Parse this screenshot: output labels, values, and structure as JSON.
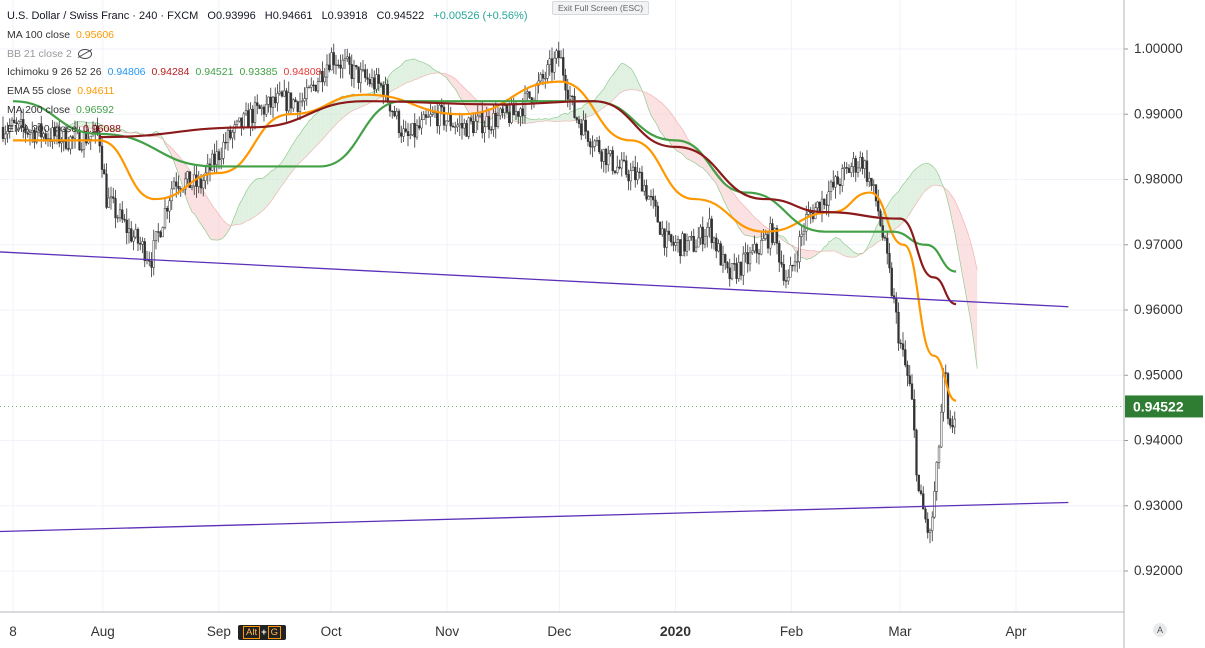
{
  "legend": {
    "main": {
      "title": "U.S. Dollar / Swiss Franc · 240 · FXCM",
      "open": "O0.93996",
      "high": "H0.94661",
      "low": "L0.93918",
      "close": "C0.94522",
      "change": "+0.00526 (+0.56%)"
    },
    "indicators": [
      {
        "label": "MA 100 close",
        "values": [
          "0.95606"
        ],
        "colors": [
          "#ff9800"
        ]
      },
      {
        "label": "BB 21 close 2",
        "values": [],
        "colors": [],
        "hidden": true
      },
      {
        "label": "Ichimoku 9 26 52 26",
        "values": [
          "0.94806",
          "0.94284",
          "0.94521",
          "0.93385",
          "0.94808"
        ],
        "colors": [
          "#2196f3",
          "#b71c1c",
          "#43a047",
          "#43a047",
          "#e53935"
        ]
      },
      {
        "label": "EMA 55 close",
        "values": [
          "0.94611"
        ],
        "colors": [
          "#ff9800"
        ]
      },
      {
        "label": "MA 200 close",
        "values": [
          "0.96592"
        ],
        "colors": [
          "#43a047"
        ]
      },
      {
        "label": "EMA 200 close",
        "values": [
          "0.96088"
        ],
        "colors": [
          "#8b0000"
        ]
      }
    ]
  },
  "ui": {
    "exit_fullscreen": "Exit Full Screen (ESC)",
    "alt_hint_pre": "Alt",
    "alt_hint_plus": "+",
    "alt_hint_key": "G",
    "auto_scale": "A"
  },
  "colors": {
    "up_candle": "#333333",
    "down_candle": "#333333",
    "ema55": "#ff9800",
    "ma200": "#43a047",
    "ema200": "#8b1a1a",
    "trendline": "#5c2fb8",
    "price_label_bg": "#2e7d32",
    "cloud_bull": "#c8e6c9",
    "cloud_bear": "#f8c8c8"
  },
  "chart_data": {
    "type": "candlestick",
    "title": "U.S. Dollar / Swiss Franc · 240 · FXCM",
    "x_axis": {
      "tick_labels": [
        "8",
        "Aug",
        "Sep",
        "Oct",
        "Nov",
        "Dec",
        "2020",
        "Feb",
        "Mar",
        "Apr"
      ],
      "range": [
        "2019-07",
        "2020-04"
      ]
    },
    "y_axis": {
      "range": [
        0.9165,
        1.0035
      ],
      "tick_labels": [
        "1.00000",
        "0.99000",
        "0.98000",
        "0.97000",
        "0.96000",
        "0.95000",
        "0.94000",
        "0.93000",
        "0.92000"
      ],
      "tick_values": [
        1.0,
        0.99,
        0.98,
        0.97,
        0.96,
        0.95,
        0.94,
        0.93,
        0.92
      ],
      "grid": true,
      "position": "right"
    },
    "last_price": {
      "value": 0.94522,
      "label": "0.94522"
    },
    "price_path": [
      [
        "2019-07-08",
        0.988
      ],
      [
        "2019-07-16",
        0.987
      ],
      [
        "2019-07-24",
        0.986
      ],
      [
        "2019-07-31",
        0.987
      ],
      [
        "2019-08-02",
        0.977
      ],
      [
        "2019-08-08",
        0.972
      ],
      [
        "2019-08-14",
        0.968
      ],
      [
        "2019-08-20",
        0.98
      ],
      [
        "2019-08-27",
        0.979
      ],
      [
        "2019-09-03",
        0.986
      ],
      [
        "2019-09-10",
        0.99
      ],
      [
        "2019-09-17",
        0.992
      ],
      [
        "2019-09-24",
        0.992
      ],
      [
        "2019-10-01",
        0.999
      ],
      [
        "2019-10-08",
        0.996
      ],
      [
        "2019-10-15",
        0.994
      ],
      [
        "2019-10-21",
        0.986
      ],
      [
        "2019-10-29",
        0.99
      ],
      [
        "2019-11-05",
        0.988
      ],
      [
        "2019-11-12",
        0.989
      ],
      [
        "2019-11-19",
        0.99
      ],
      [
        "2019-11-25",
        0.994
      ],
      [
        "2019-12-01",
        0.999
      ],
      [
        "2019-12-05",
        0.99
      ],
      [
        "2019-12-10",
        0.986
      ],
      [
        "2019-12-16",
        0.982
      ],
      [
        "2019-12-23",
        0.98
      ],
      [
        "2019-12-30",
        0.97
      ],
      [
        "2020-01-06",
        0.97
      ],
      [
        "2020-01-10",
        0.973
      ],
      [
        "2020-01-15",
        0.965
      ],
      [
        "2020-01-21",
        0.968
      ],
      [
        "2020-01-27",
        0.972
      ],
      [
        "2020-01-31",
        0.964
      ],
      [
        "2020-02-05",
        0.974
      ],
      [
        "2020-02-11",
        0.978
      ],
      [
        "2020-02-17",
        0.982
      ],
      [
        "2020-02-20",
        0.983
      ],
      [
        "2020-02-24",
        0.976
      ],
      [
        "2020-02-27",
        0.966
      ],
      [
        "2020-03-01",
        0.955
      ],
      [
        "2020-03-04",
        0.947
      ],
      [
        "2020-03-06",
        0.932
      ],
      [
        "2020-03-09",
        0.925
      ],
      [
        "2020-03-11",
        0.936
      ],
      [
        "2020-03-13",
        0.952
      ],
      [
        "2020-03-14",
        0.94
      ],
      [
        "2020-03-16",
        0.945
      ]
    ],
    "series": [
      {
        "name": "EMA 55 close",
        "color": "#ff9800",
        "points": [
          [
            "2019-07-08",
            0.986
          ],
          [
            "2019-07-31",
            0.986
          ],
          [
            "2019-08-15",
            0.977
          ],
          [
            "2019-09-01",
            0.981
          ],
          [
            "2019-09-20",
            0.99
          ],
          [
            "2019-10-10",
            0.993
          ],
          [
            "2019-11-05",
            0.99
          ],
          [
            "2019-12-01",
            0.995
          ],
          [
            "2019-12-20",
            0.986
          ],
          [
            "2020-01-06",
            0.977
          ],
          [
            "2020-01-25",
            0.972
          ],
          [
            "2020-02-12",
            0.975
          ],
          [
            "2020-02-22",
            0.978
          ],
          [
            "2020-03-02",
            0.97
          ],
          [
            "2020-03-10",
            0.953
          ],
          [
            "2020-03-16",
            0.9461
          ]
        ]
      },
      {
        "name": "MA 200 close",
        "color": "#43a047",
        "points": [
          [
            "2019-07-08",
            0.992
          ],
          [
            "2019-07-31",
            0.987
          ],
          [
            "2019-08-31",
            0.982
          ],
          [
            "2019-09-28",
            0.982
          ],
          [
            "2019-10-20",
            0.992
          ],
          [
            "2019-11-15",
            0.992
          ],
          [
            "2019-12-10",
            0.992
          ],
          [
            "2020-01-01",
            0.986
          ],
          [
            "2020-01-20",
            0.978
          ],
          [
            "2020-02-10",
            0.972
          ],
          [
            "2020-02-28",
            0.972
          ],
          [
            "2020-03-08",
            0.97
          ],
          [
            "2020-03-16",
            0.9659
          ]
        ]
      },
      {
        "name": "EMA 200 close",
        "color": "#8b1a1a",
        "points": [
          [
            "2019-07-31",
            0.9865
          ],
          [
            "2019-09-10",
            0.988
          ],
          [
            "2019-10-10",
            0.992
          ],
          [
            "2019-11-15",
            0.9915
          ],
          [
            "2019-12-10",
            0.992
          ],
          [
            "2020-01-01",
            0.985
          ],
          [
            "2020-01-25",
            0.977
          ],
          [
            "2020-02-10",
            0.975
          ],
          [
            "2020-03-01",
            0.974
          ],
          [
            "2020-03-10",
            0.965
          ],
          [
            "2020-03-16",
            0.9609
          ]
        ]
      }
    ],
    "trendlines": [
      {
        "name": "upper trendline",
        "color": "#5c2fb8",
        "points": [
          [
            "2019-07-01",
            0.969
          ],
          [
            "2020-04-15",
            0.9605
          ]
        ]
      },
      {
        "name": "lower trendline",
        "color": "#5c2fb8",
        "points": [
          [
            "2019-07-01",
            0.926
          ],
          [
            "2020-04-15",
            0.9305
          ]
        ]
      }
    ],
    "ichimoku_cloud": {
      "note": "bullish/bearish shaded cloud following price"
    },
    "legend_position": "top-left"
  }
}
